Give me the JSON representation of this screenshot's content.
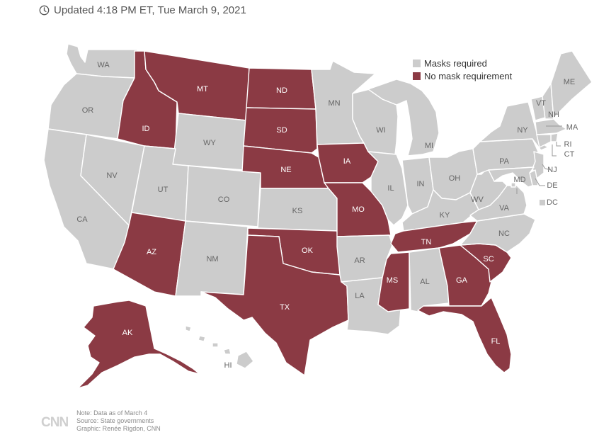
{
  "header": {
    "clock_icon": "clock-icon",
    "updated_text": "Updated 4:18 PM ET, Tue March 9, 2021"
  },
  "legend": {
    "items": [
      {
        "label": "Masks required",
        "color": "#cccccc"
      },
      {
        "label": "No mask requirement",
        "color": "#8b3a44"
      }
    ]
  },
  "map": {
    "colors": {
      "required": "#cccccc",
      "none": "#8b3a44",
      "label_light": "#ffffff",
      "label_dark": "#666666"
    },
    "states": [
      {
        "abbr": "WA",
        "status": "required"
      },
      {
        "abbr": "OR",
        "status": "required"
      },
      {
        "abbr": "CA",
        "status": "required"
      },
      {
        "abbr": "NV",
        "status": "required"
      },
      {
        "abbr": "ID",
        "status": "none"
      },
      {
        "abbr": "MT",
        "status": "none"
      },
      {
        "abbr": "WY",
        "status": "required"
      },
      {
        "abbr": "UT",
        "status": "required"
      },
      {
        "abbr": "AZ",
        "status": "none"
      },
      {
        "abbr": "CO",
        "status": "required"
      },
      {
        "abbr": "NM",
        "status": "required"
      },
      {
        "abbr": "ND",
        "status": "none"
      },
      {
        "abbr": "SD",
        "status": "none"
      },
      {
        "abbr": "NE",
        "status": "none"
      },
      {
        "abbr": "KS",
        "status": "required"
      },
      {
        "abbr": "OK",
        "status": "none"
      },
      {
        "abbr": "TX",
        "status": "none"
      },
      {
        "abbr": "MN",
        "status": "required"
      },
      {
        "abbr": "IA",
        "status": "none"
      },
      {
        "abbr": "MO",
        "status": "none"
      },
      {
        "abbr": "AR",
        "status": "required"
      },
      {
        "abbr": "LA",
        "status": "required"
      },
      {
        "abbr": "WI",
        "status": "required"
      },
      {
        "abbr": "IL",
        "status": "required"
      },
      {
        "abbr": "MI",
        "status": "required"
      },
      {
        "abbr": "IN",
        "status": "required"
      },
      {
        "abbr": "OH",
        "status": "required"
      },
      {
        "abbr": "KY",
        "status": "required"
      },
      {
        "abbr": "TN",
        "status": "none"
      },
      {
        "abbr": "MS",
        "status": "none"
      },
      {
        "abbr": "AL",
        "status": "required"
      },
      {
        "abbr": "GA",
        "status": "none"
      },
      {
        "abbr": "FL",
        "status": "none"
      },
      {
        "abbr": "SC",
        "status": "none"
      },
      {
        "abbr": "NC",
        "status": "required"
      },
      {
        "abbr": "VA",
        "status": "required"
      },
      {
        "abbr": "WV",
        "status": "required"
      },
      {
        "abbr": "PA",
        "status": "required"
      },
      {
        "abbr": "NY",
        "status": "required"
      },
      {
        "abbr": "VT",
        "status": "required"
      },
      {
        "abbr": "NH",
        "status": "required"
      },
      {
        "abbr": "ME",
        "status": "required"
      },
      {
        "abbr": "MA",
        "status": "required"
      },
      {
        "abbr": "RI",
        "status": "required"
      },
      {
        "abbr": "CT",
        "status": "required"
      },
      {
        "abbr": "NJ",
        "status": "required"
      },
      {
        "abbr": "DE",
        "status": "required"
      },
      {
        "abbr": "MD",
        "status": "required"
      },
      {
        "abbr": "DC",
        "status": "required"
      },
      {
        "abbr": "AK",
        "status": "none"
      },
      {
        "abbr": "HI",
        "status": "required"
      }
    ]
  },
  "footer": {
    "logo_text": "CNN",
    "note": "Note: Data as of March 4",
    "source": "Source: State governments",
    "graphic": "Graphic: Renée Rigdon, CNN"
  }
}
